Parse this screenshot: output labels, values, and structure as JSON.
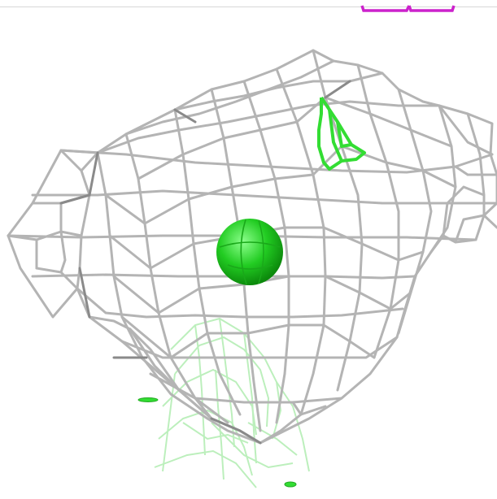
{
  "scene": {
    "background_color": "#ffffff",
    "mesh_color": "#b4b4b4",
    "mesh_dark_color": "#8a8a8a",
    "ion_color": "#22cc22",
    "green_mesh_color": "#33dd33",
    "pale_green_color": "#9fe89f",
    "magenta_color": "#cc22cc",
    "icons": [
      "electron-density-mesh",
      "ion-sphere",
      "difference-density-mesh"
    ]
  }
}
